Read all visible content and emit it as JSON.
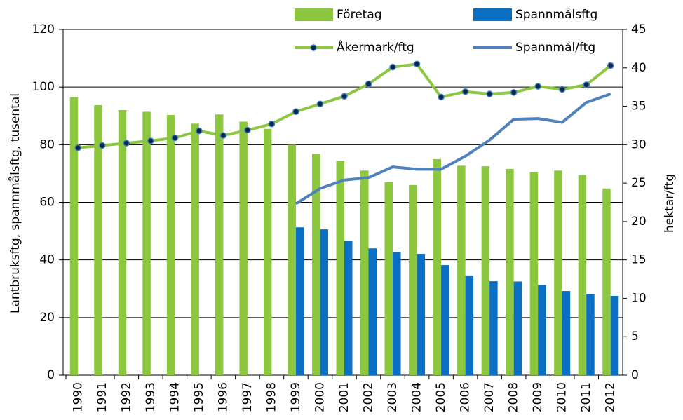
{
  "chart_data": {
    "type": "combo",
    "y_label": "Lantbruksftg, spannmålsftg, tusental",
    "y2_label": "hektar/ftg",
    "categories": [
      "1990",
      "1991",
      "1992",
      "1993",
      "1994",
      "1995",
      "1996",
      "1997",
      "1998",
      "1999",
      "2000",
      "2001",
      "2002",
      "2003",
      "2004",
      "2005",
      "2006",
      "2007",
      "2008",
      "2009",
      "2010",
      "2011",
      "2012"
    ],
    "series": [
      {
        "name": "Företag",
        "type": "bar",
        "color": "#8dc63f",
        "values": [
          96.5,
          93.7,
          92,
          91.4,
          90.3,
          87.3,
          90.5,
          88,
          85.5,
          80,
          76.8,
          74.4,
          71,
          67,
          66,
          75,
          72.7,
          72.5,
          71.6,
          70.5,
          71,
          69.5,
          64.8
        ]
      },
      {
        "name": "Spannmålsftg",
        "type": "bar",
        "color": "#0a6fc2",
        "values": [
          null,
          null,
          null,
          null,
          null,
          null,
          null,
          null,
          null,
          51.3,
          50.6,
          46.5,
          44,
          42.8,
          42.1,
          38.2,
          34.6,
          32.6,
          32.5,
          31.3,
          29.2,
          28.2,
          27.5
        ]
      },
      {
        "name": "Åkermark/ftg",
        "type": "line",
        "axis": "y2",
        "marker": true,
        "color": "#8dc63f",
        "values": [
          29.6,
          29.9,
          30.2,
          30.5,
          30.9,
          31.8,
          31.2,
          31.9,
          32.7,
          34.3,
          35.3,
          36.3,
          37.9,
          40.1,
          40.5,
          36.2,
          36.9,
          36.6,
          36.8,
          37.6,
          37.2,
          37.8,
          40.3
        ]
      },
      {
        "name": "Spannmål/ftg",
        "type": "line",
        "axis": "y2",
        "marker": false,
        "color": "#4f81bd",
        "values": [
          null,
          null,
          null,
          null,
          null,
          null,
          null,
          null,
          null,
          22.3,
          24.3,
          25.4,
          25.7,
          27.1,
          26.8,
          26.8,
          28.5,
          30.6,
          33.3,
          33.4,
          32.9,
          35.5,
          36.6
        ]
      }
    ],
    "ylim": [
      0,
      120
    ],
    "yticks": [
      0,
      20,
      40,
      60,
      80,
      100,
      120
    ],
    "y2lim": [
      0,
      45
    ],
    "y2ticks": [
      0,
      5,
      10,
      15,
      20,
      25,
      30,
      35,
      40,
      45
    ],
    "grid": true,
    "legend": "top"
  }
}
